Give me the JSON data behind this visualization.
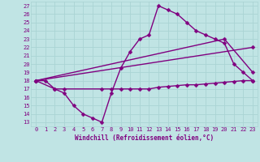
{
  "lines": [
    {
      "x": [
        0,
        1,
        2,
        3,
        4,
        5,
        6,
        7,
        8,
        9,
        10,
        11,
        12,
        13,
        14,
        15,
        16,
        17,
        18,
        19,
        20,
        21,
        22,
        23
      ],
      "y": [
        18,
        18,
        17,
        16.5,
        15,
        14,
        13.5,
        13,
        16.5,
        19.5,
        21.5,
        23,
        23.5,
        27,
        26.5,
        26,
        25,
        24,
        23.5,
        23,
        22.5,
        20,
        19,
        18
      ],
      "color": "#800080",
      "marker": "D",
      "markersize": 2.5,
      "linewidth": 1.0
    },
    {
      "x": [
        0,
        2,
        3,
        7,
        8,
        9,
        10,
        11,
        12,
        13,
        14,
        15,
        16,
        17,
        18,
        19,
        20,
        21,
        22,
        23
      ],
      "y": [
        18,
        17,
        17,
        17,
        17,
        17,
        17,
        17,
        17,
        17.2,
        17.3,
        17.4,
        17.5,
        17.5,
        17.6,
        17.7,
        17.8,
        17.9,
        18,
        18
      ],
      "color": "#800080",
      "marker": "D",
      "markersize": 2.5,
      "linewidth": 1.0
    },
    {
      "x": [
        0,
        23
      ],
      "y": [
        18,
        22
      ],
      "color": "#800080",
      "marker": "D",
      "markersize": 2.5,
      "linewidth": 1.0
    },
    {
      "x": [
        0,
        20,
        23
      ],
      "y": [
        18,
        23,
        19
      ],
      "color": "#800080",
      "marker": "D",
      "markersize": 2.5,
      "linewidth": 1.0
    }
  ],
  "xlim": [
    -0.5,
    23.5
  ],
  "ylim": [
    12.5,
    27.5
  ],
  "yticks": [
    13,
    14,
    15,
    16,
    17,
    18,
    19,
    20,
    21,
    22,
    23,
    24,
    25,
    26,
    27
  ],
  "xticks": [
    0,
    1,
    2,
    3,
    4,
    5,
    6,
    7,
    8,
    9,
    10,
    11,
    12,
    13,
    14,
    15,
    16,
    17,
    18,
    19,
    20,
    21,
    22,
    23
  ],
  "xlabel": "Windchill (Refroidissement éolien,°C)",
  "grid_color": "#aad4d4",
  "bg_color": "#c0e4e4",
  "line_color": "#800080",
  "tick_label_color": "#800080",
  "xlabel_color": "#800080",
  "xlabel_fontsize": 5.5,
  "tick_fontsize": 5
}
